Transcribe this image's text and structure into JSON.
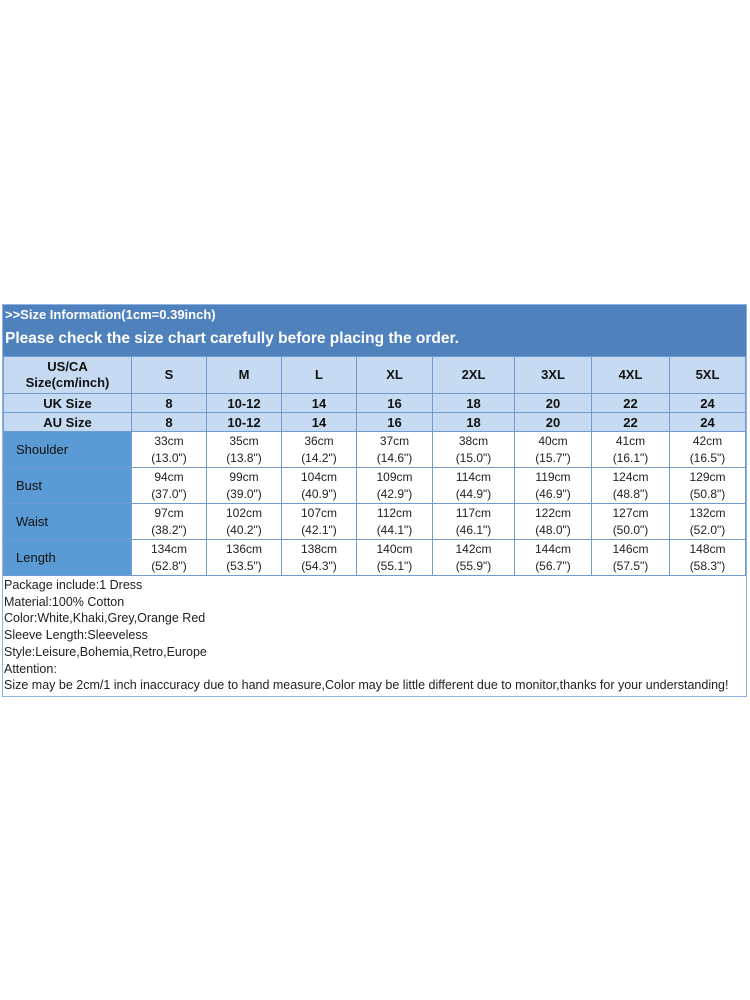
{
  "title": ">>Size Information(1cm=0.39inch)",
  "subtitle": "Please check the size chart carefully before placing the order.",
  "size_header": "US/CA Size(cm/inch)",
  "sizes": [
    "S",
    "M",
    "L",
    "XL",
    "2XL",
    "3XL",
    "4XL",
    "5XL"
  ],
  "uk": {
    "label": "UK Size",
    "values": [
      "8",
      "10-12",
      "14",
      "16",
      "18",
      "20",
      "22",
      "24"
    ]
  },
  "au": {
    "label": "AU Size",
    "values": [
      "8",
      "10-12",
      "14",
      "16",
      "18",
      "20",
      "22",
      "24"
    ]
  },
  "measurements": [
    {
      "label": "Shoulder",
      "cm": [
        "33cm",
        "35cm",
        "36cm",
        "37cm",
        "38cm",
        "40cm",
        "41cm",
        "42cm"
      ],
      "inch": [
        "(13.0\")",
        "(13.8\")",
        "(14.2\")",
        "(14.6\")",
        "(15.0\")",
        "(15.7\")",
        "(16.1\")",
        "(16.5\")"
      ]
    },
    {
      "label": "Bust",
      "cm": [
        "94cm",
        "99cm",
        "104cm",
        "109cm",
        "114cm",
        "119cm",
        "124cm",
        "129cm"
      ],
      "inch": [
        "(37.0\")",
        "(39.0\")",
        "(40.9\")",
        "(42.9\")",
        "(44.9\")",
        "(46.9\")",
        "(48.8\")",
        "(50.8\")"
      ]
    },
    {
      "label": "Waist",
      "cm": [
        "97cm",
        "102cm",
        "107cm",
        "112cm",
        "117cm",
        "122cm",
        "127cm",
        "132cm"
      ],
      "inch": [
        "(38.2\")",
        "(40.2\")",
        "(42.1\")",
        "(44.1\")",
        "(46.1\")",
        "(48.0\")",
        "(50.0\")",
        "(52.0\")"
      ]
    },
    {
      "label": "Length",
      "cm": [
        "134cm",
        "136cm",
        "138cm",
        "140cm",
        "142cm",
        "144cm",
        "146cm",
        "148cm"
      ],
      "inch": [
        "(52.8\")",
        "(53.5\")",
        "(54.3\")",
        "(55.1\")",
        "(55.9\")",
        "(56.7\")",
        "(57.5\")",
        "(58.3\")"
      ]
    }
  ],
  "notes": [
    "Package include:1 Dress",
    "Material:100% Cotton",
    "Color:White,Khaki,Grey,Orange Red",
    "Sleeve Length:Sleeveless",
    "Style:Leisure,Bohemia,Retro,Europe",
    "Attention:",
    "Size may be 2cm/1 inch inaccuracy due to hand measure,Color may be little different due to monitor,thanks for your understanding!"
  ],
  "colors": {
    "header": "#4f81bd",
    "size_rows": "#c6dbf2",
    "label_cells": "#5b9bd5"
  }
}
